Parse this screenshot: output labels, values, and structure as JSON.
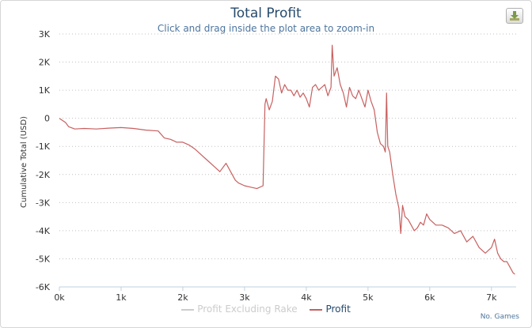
{
  "chart_data": {
    "type": "line",
    "title": "Total Profit",
    "subtitle": "Click and drag inside the plot area to zoom-in",
    "xlabel": "No. Games",
    "ylabel": "Cumulative Total (USD)",
    "xlim": [
      0,
      7400
    ],
    "ylim": [
      -6000,
      3000
    ],
    "x_ticks": [
      0,
      1000,
      2000,
      3000,
      4000,
      5000,
      6000,
      7000
    ],
    "x_tick_labels": [
      "0k",
      "1k",
      "2k",
      "3k",
      "4k",
      "5k",
      "6k",
      "7k"
    ],
    "y_ticks": [
      3000,
      2000,
      1000,
      0,
      -1000,
      -2000,
      -3000,
      -4000,
      -5000,
      -6000
    ],
    "y_tick_labels": [
      "3K",
      "2K",
      "1K",
      "0",
      "-1K",
      "-2K",
      "-3K",
      "-4K",
      "-5K",
      "-6K"
    ],
    "legend": [
      "Profit Excluding Rake",
      "Profit"
    ],
    "series": [
      {
        "name": "Profit",
        "color": "#c86060",
        "x": [
          0,
          100,
          150,
          250,
          400,
          600,
          800,
          1000,
          1200,
          1400,
          1600,
          1700,
          1800,
          1850,
          1900,
          2000,
          2100,
          2200,
          2300,
          2400,
          2500,
          2600,
          2700,
          2750,
          2800,
          2850,
          2900,
          3000,
          3100,
          3200,
          3300,
          3330,
          3350,
          3400,
          3450,
          3500,
          3550,
          3600,
          3650,
          3700,
          3750,
          3800,
          3850,
          3900,
          3950,
          4000,
          4050,
          4100,
          4150,
          4200,
          4250,
          4300,
          4350,
          4400,
          4420,
          4450,
          4500,
          4550,
          4600,
          4650,
          4700,
          4750,
          4800,
          4850,
          4900,
          4950,
          5000,
          5050,
          5100,
          5150,
          5200,
          5250,
          5280,
          5300,
          5320,
          5350,
          5400,
          5450,
          5500,
          5530,
          5560,
          5600,
          5650,
          5700,
          5750,
          5800,
          5850,
          5900,
          5950,
          6000,
          6050,
          6100,
          6200,
          6300,
          6400,
          6500,
          6600,
          6700,
          6800,
          6900,
          7000,
          7050,
          7100,
          7150,
          7200,
          7250,
          7300,
          7350,
          7380
        ],
        "y": [
          0,
          -150,
          -300,
          -380,
          -360,
          -380,
          -350,
          -330,
          -360,
          -420,
          -450,
          -700,
          -750,
          -800,
          -850,
          -850,
          -950,
          -1100,
          -1300,
          -1500,
          -1700,
          -1900,
          -1600,
          -1800,
          -2000,
          -2200,
          -2300,
          -2400,
          -2450,
          -2500,
          -2400,
          500,
          700,
          300,
          600,
          1500,
          1400,
          900,
          1200,
          1000,
          1000,
          800,
          1000,
          750,
          900,
          700,
          400,
          1100,
          1200,
          1000,
          1100,
          1200,
          800,
          1100,
          2600,
          1500,
          1800,
          1200,
          900,
          400,
          1100,
          800,
          700,
          1000,
          700,
          400,
          1000,
          600,
          300,
          -500,
          -900,
          -1000,
          -1200,
          900,
          -1000,
          -1200,
          -2000,
          -2700,
          -3200,
          -4100,
          -3100,
          -3500,
          -3600,
          -3800,
          -4000,
          -3900,
          -3700,
          -3800,
          -3400,
          -3600,
          -3700,
          -3800,
          -3800,
          -3900,
          -4100,
          -4000,
          -4400,
          -4200,
          -4600,
          -4800,
          -4600,
          -4300,
          -4800,
          -5000,
          -5100,
          -5100,
          -5300,
          -5500,
          -5550
        ]
      }
    ]
  },
  "ui": {
    "export_button_icon": "download-icon",
    "accent_color": "#274b6d",
    "series_color": "#c86060",
    "disabled_color": "#cccccc"
  }
}
